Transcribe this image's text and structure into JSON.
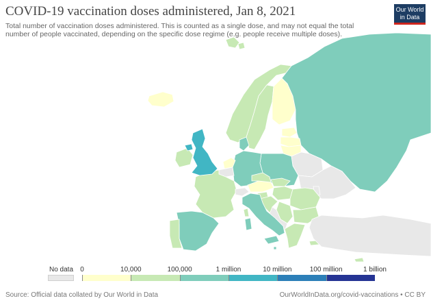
{
  "title": "COVID-19 vaccination doses administered, Jan 8, 2021",
  "subtitle_line1": "Total number of vaccination doses administered. This is counted as a single dose, and may not equal the total",
  "subtitle_line2": "number of people vaccinated, depending on the specific dose regime (e.g. people receive multiple doses).",
  "logo_line1": "Our World",
  "logo_line2": "in Data",
  "legend": {
    "no_data_label": "No data",
    "no_data_color": "#e8e8e8",
    "ticks": [
      "0",
      "10,000",
      "100,000",
      "1 million",
      "10 million",
      "100 million",
      "1 billion"
    ],
    "bins": [
      {
        "range": "0–10,000",
        "color": "#ffffcc"
      },
      {
        "range": "10,000–100,000",
        "color": "#c7e9b4"
      },
      {
        "range": "100,000–1 million",
        "color": "#7fcdbb"
      },
      {
        "range": "1 million–10 million",
        "color": "#41b6c4"
      },
      {
        "range": "10 million–100 million",
        "color": "#2c7fb8"
      },
      {
        "range": "100 million–1 billion",
        "color": "#253494"
      }
    ]
  },
  "footer": {
    "source": "Source: Official data collated by Our World in Data",
    "url": "OurWorldInData.org/covid-vaccinations • CC BY"
  },
  "regions": [
    {
      "name": "United Kingdom",
      "color": "#41b6c4"
    },
    {
      "name": "Ireland",
      "color": "#c7e9b4"
    },
    {
      "name": "Iceland",
      "color": "#ffffcc"
    },
    {
      "name": "Norway",
      "color": "#c7e9b4"
    },
    {
      "name": "Sweden",
      "color": "#c7e9b4"
    },
    {
      "name": "Finland",
      "color": "#ffffcc"
    },
    {
      "name": "Russia",
      "color": "#7fcdbb"
    },
    {
      "name": "Estonia",
      "color": "#ffffcc"
    },
    {
      "name": "Latvia",
      "color": "#ffffcc"
    },
    {
      "name": "Lithuania",
      "color": "#ffffcc"
    },
    {
      "name": "Belarus",
      "color": "#e8e8e8"
    },
    {
      "name": "Ukraine",
      "color": "#e8e8e8"
    },
    {
      "name": "Poland",
      "color": "#7fcdbb"
    },
    {
      "name": "Germany",
      "color": "#7fcdbb"
    },
    {
      "name": "Denmark",
      "color": "#7fcdbb"
    },
    {
      "name": "Netherlands",
      "color": "#ffffcc"
    },
    {
      "name": "Belgium",
      "color": "#e8e8e8"
    },
    {
      "name": "France",
      "color": "#c7e9b4"
    },
    {
      "name": "Spain",
      "color": "#7fcdbb"
    },
    {
      "name": "Portugal",
      "color": "#c7e9b4"
    },
    {
      "name": "Switzerland",
      "color": "#e8e8e8"
    },
    {
      "name": "Austria",
      "color": "#ffffcc"
    },
    {
      "name": "Czechia",
      "color": "#c7e9b4"
    },
    {
      "name": "Slovakia",
      "color": "#c7e9b4"
    },
    {
      "name": "Hungary",
      "color": "#c7e9b4"
    },
    {
      "name": "Romania",
      "color": "#c7e9b4"
    },
    {
      "name": "Bulgaria",
      "color": "#c7e9b4"
    },
    {
      "name": "Italy",
      "color": "#7fcdbb"
    },
    {
      "name": "Slovenia",
      "color": "#c7e9b4"
    },
    {
      "name": "Croatia",
      "color": "#c7e9b4"
    },
    {
      "name": "Serbia",
      "color": "#c7e9b4"
    },
    {
      "name": "Balkans",
      "color": "#e8e8e8"
    },
    {
      "name": "Greece",
      "color": "#c7e9b4"
    },
    {
      "name": "Moldova",
      "color": "#e8e8e8"
    },
    {
      "name": "Turkey",
      "color": "#e8e8e8"
    },
    {
      "name": "Cyprus",
      "color": "#c7e9b4"
    },
    {
      "name": "Malta",
      "color": "#7fcdbb"
    }
  ]
}
